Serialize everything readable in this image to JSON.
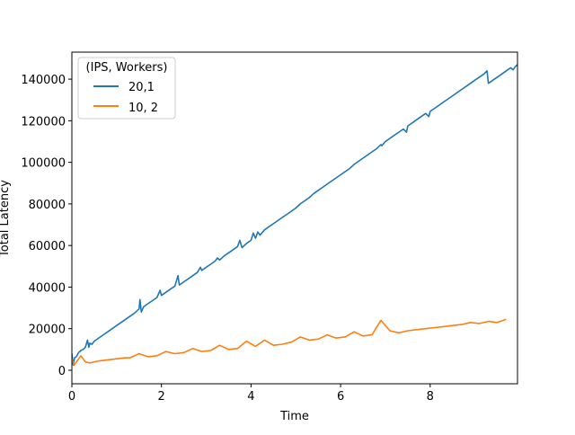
{
  "chart_data": {
    "type": "line",
    "title": "",
    "xlabel": "Time",
    "ylabel": "Total Latency",
    "xlim": [
      0,
      9.95
    ],
    "ylim": [
      -6500,
      153000
    ],
    "xticks": [
      0,
      2,
      4,
      6,
      8
    ],
    "xtick_labels": [
      "0",
      "2",
      "4",
      "6",
      "8"
    ],
    "yticks": [
      0,
      20000,
      40000,
      60000,
      80000,
      100000,
      120000,
      140000
    ],
    "ytick_labels": [
      "0",
      "20000",
      "40000",
      "60000",
      "80000",
      "100000",
      "120000",
      "140000"
    ],
    "grid": false,
    "legend": {
      "title": "(IPS, Workers)",
      "placement": "top-left"
    },
    "series": [
      {
        "name": "20,1",
        "color": "#1f77b4",
        "x": [
          0,
          0.03,
          0.06,
          0.1,
          0.15,
          0.2,
          0.25,
          0.3,
          0.35,
          0.38,
          0.4,
          0.45,
          0.5,
          0.6,
          0.7,
          0.8,
          0.9,
          1.0,
          1.1,
          1.2,
          1.3,
          1.4,
          1.5,
          1.52,
          1.55,
          1.6,
          1.7,
          1.8,
          1.9,
          1.97,
          2.0,
          2.1,
          2.2,
          2.3,
          2.37,
          2.4,
          2.5,
          2.6,
          2.7,
          2.8,
          2.87,
          2.9,
          3.0,
          3.1,
          3.2,
          3.25,
          3.3,
          3.4,
          3.5,
          3.6,
          3.7,
          3.75,
          3.8,
          3.9,
          4.0,
          4.05,
          4.1,
          4.15,
          4.2,
          4.3,
          4.4,
          4.5,
          4.6,
          4.7,
          4.8,
          4.9,
          5.0,
          5.1,
          5.2,
          5.3,
          5.4,
          5.5,
          5.6,
          5.7,
          5.8,
          5.9,
          6.0,
          6.1,
          6.2,
          6.3,
          6.4,
          6.5,
          6.6,
          6.7,
          6.8,
          6.9,
          6.92,
          7.0,
          7.1,
          7.2,
          7.3,
          7.4,
          7.47,
          7.5,
          7.6,
          7.7,
          7.8,
          7.9,
          7.97,
          8.0,
          8.1,
          8.2,
          8.3,
          8.4,
          8.5,
          8.6,
          8.7,
          8.8,
          8.9,
          9.0,
          9.1,
          9.2,
          9.27,
          9.3,
          9.4,
          9.5,
          9.6,
          9.7,
          9.8,
          9.85,
          9.9,
          9.95
        ],
        "values": [
          8000,
          2500,
          6000,
          6500,
          8500,
          9500,
          10000,
          11000,
          14500,
          11000,
          13000,
          12500,
          14000,
          15500,
          17000,
          18500,
          20000,
          21500,
          23000,
          24500,
          26000,
          27500,
          29500,
          34000,
          28000,
          30500,
          32000,
          33500,
          35000,
          38500,
          36000,
          37500,
          39000,
          40500,
          45500,
          41000,
          42500,
          44000,
          45500,
          47000,
          49500,
          48000,
          49500,
          51000,
          52500,
          54000,
          53000,
          55000,
          56500,
          58000,
          59500,
          62500,
          59000,
          61000,
          62500,
          66000,
          63500,
          66500,
          65000,
          67500,
          69000,
          70500,
          72000,
          73500,
          75000,
          76500,
          78000,
          80000,
          81500,
          83000,
          85000,
          86500,
          88000,
          89500,
          91000,
          92500,
          94000,
          95500,
          97000,
          99000,
          100500,
          102000,
          103500,
          105000,
          106500,
          108500,
          108000,
          110000,
          111500,
          113000,
          114500,
          116000,
          114500,
          117500,
          119000,
          120500,
          122000,
          123500,
          122000,
          124500,
          126000,
          127500,
          129000,
          130500,
          132000,
          133500,
          135000,
          136500,
          138000,
          139500,
          141000,
          142500,
          144000,
          138000,
          139500,
          141000,
          142500,
          144000,
          145500,
          144500,
          146000,
          147000
        ]
      },
      {
        "name": "10, 2",
        "color": "#ff7f0e",
        "x": [
          0,
          0.05,
          0.1,
          0.2,
          0.3,
          0.4,
          0.5,
          0.6,
          0.8,
          1.0,
          1.2,
          1.3,
          1.5,
          1.7,
          1.9,
          2.1,
          2.3,
          2.5,
          2.7,
          2.9,
          3.1,
          3.3,
          3.5,
          3.7,
          3.9,
          4.1,
          4.3,
          4.5,
          4.7,
          4.9,
          5.1,
          5.3,
          5.5,
          5.7,
          5.9,
          6.1,
          6.3,
          6.5,
          6.7,
          6.9,
          7.1,
          7.3,
          7.5,
          7.7,
          7.9,
          8.1,
          8.3,
          8.5,
          8.7,
          8.9,
          9.1,
          9.3,
          9.5,
          9.7
        ],
        "values": [
          5500,
          2500,
          4000,
          7000,
          4000,
          3500,
          4000,
          4500,
          5000,
          5500,
          6000,
          6000,
          8000,
          6500,
          7000,
          9000,
          8000,
          8500,
          10500,
          9000,
          9500,
          12000,
          10000,
          10500,
          14000,
          11500,
          14500,
          12000,
          12500,
          13500,
          16000,
          14500,
          15000,
          17000,
          15500,
          16000,
          18500,
          16500,
          17000,
          24000,
          19000,
          18000,
          19000,
          19500,
          20000,
          20500,
          21000,
          21500,
          22000,
          23000,
          22500,
          23500,
          23000,
          24500
        ]
      }
    ]
  }
}
